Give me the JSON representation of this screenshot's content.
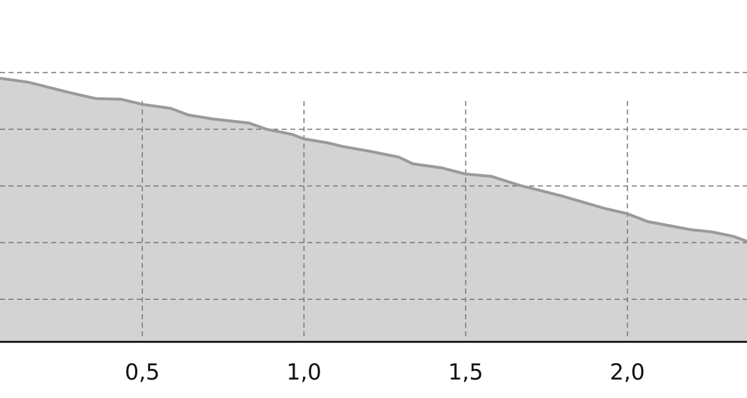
{
  "chart_data": {
    "type": "area",
    "title": "",
    "xlabel": "",
    "ylabel": "",
    "xlim": [
      0.06,
      2.37
    ],
    "ylim": [
      0.25,
      6.28
    ],
    "grid": true,
    "x_ticks": [
      0.5,
      1.0,
      1.5,
      2.0
    ],
    "x_tick_labels": [
      "0,5",
      "1,0",
      "1,5",
      "2,0"
    ],
    "y_gridlines": [
      1,
      2,
      3,
      4,
      5
    ],
    "colors": {
      "fill": "#d3d3d3",
      "line": "#9a9a9a",
      "grid": "#777777",
      "axis": "#000000"
    },
    "series": [
      {
        "x": [
          0.06,
          0.148,
          0.28,
          0.357,
          0.434,
          0.5,
          0.588,
          0.643,
          0.72,
          0.83,
          0.885,
          0.963,
          1.0,
          1.073,
          1.117,
          1.205,
          1.293,
          1.337,
          1.425,
          1.5,
          1.579,
          1.667,
          1.8,
          1.866,
          1.932,
          2.0,
          2.064,
          2.13,
          2.196,
          2.262,
          2.328,
          2.372
        ],
        "y": [
          4.9,
          4.83,
          4.64,
          4.54,
          4.53,
          4.44,
          4.37,
          4.25,
          4.18,
          4.11,
          4.0,
          3.91,
          3.83,
          3.76,
          3.7,
          3.61,
          3.51,
          3.39,
          3.32,
          3.21,
          3.17,
          3.01,
          2.82,
          2.71,
          2.6,
          2.51,
          2.37,
          2.3,
          2.23,
          2.19,
          2.11,
          2.02
        ]
      }
    ]
  }
}
